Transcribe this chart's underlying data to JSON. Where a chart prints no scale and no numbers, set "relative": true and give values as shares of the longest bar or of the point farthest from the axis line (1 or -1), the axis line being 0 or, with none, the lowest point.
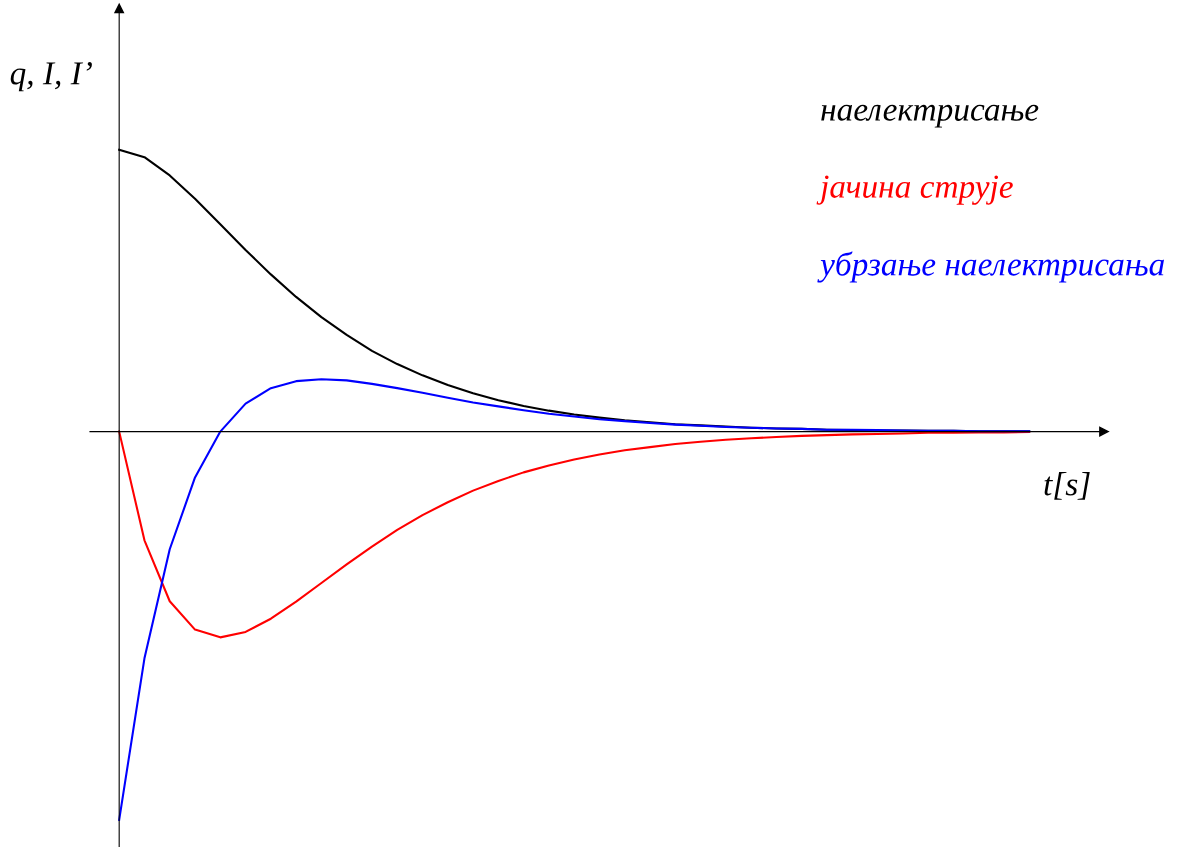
{
  "chart_data": {
    "type": "line",
    "relative": true,
    "ylabel": "q, I, I’",
    "xlabel": "t[s]",
    "legend": "top right",
    "marker": "none",
    "line_style": "solid",
    "tick_labels": false,
    "categories": [
      null,
      null,
      null,
      null,
      null,
      null,
      null,
      null,
      null,
      null,
      null,
      null,
      null,
      null,
      null,
      null,
      null,
      null,
      null,
      null,
      null,
      null,
      null,
      null,
      null,
      null,
      null,
      null,
      null,
      null,
      null,
      null,
      null,
      null,
      null,
      null,
      null
    ],
    "series": [
      {
        "name": "наелектрисање",
        "color": "#000000",
        "values": [
          0.726,
          0.707,
          0.66,
          0.6,
          0.534,
          0.468,
          0.405,
          0.347,
          0.295,
          0.249,
          0.208,
          0.174,
          0.145,
          0.12,
          0.099,
          0.081,
          0.066,
          0.054,
          0.044,
          0.036,
          0.029,
          0.024,
          0.019,
          0.016,
          0.013,
          0.01,
          0.008,
          0.007,
          0.005,
          0.004,
          0.003,
          0.003,
          0.002,
          0.002,
          0.001,
          0.001,
          0.001
        ]
      },
      {
        "name": "јачина струје",
        "color": "#ff0000",
        "values": [
          0,
          -0.28,
          -0.437,
          -0.51,
          -0.53,
          -0.516,
          -0.482,
          -0.438,
          -0.39,
          -0.342,
          -0.296,
          -0.253,
          -0.215,
          -0.182,
          -0.152,
          -0.127,
          -0.105,
          -0.087,
          -0.072,
          -0.059,
          -0.048,
          -0.04,
          -0.032,
          -0.026,
          -0.021,
          -0.017,
          -0.014,
          -0.011,
          -0.009,
          -0.007,
          -0.006,
          -0.005,
          -0.003,
          -0.003,
          -0.002,
          -0.002,
          -0.001
        ]
      },
      {
        "name": "убрзање наелектрисања",
        "color": "#0000ff",
        "values": [
          -1,
          -0.584,
          -0.303,
          -0.118,
          0,
          0.072,
          0.112,
          0.13,
          0.135,
          0.132,
          0.123,
          0.112,
          0.1,
          0.087,
          0.075,
          0.065,
          0.055,
          0.046,
          0.039,
          0.032,
          0.027,
          0.022,
          0.018,
          0.015,
          0.012,
          0.01,
          0.008,
          0.007,
          0.005,
          0.005,
          0.004,
          0.003,
          0.002,
          0.002,
          0.001,
          0.001,
          0.001
        ]
      }
    ]
  }
}
